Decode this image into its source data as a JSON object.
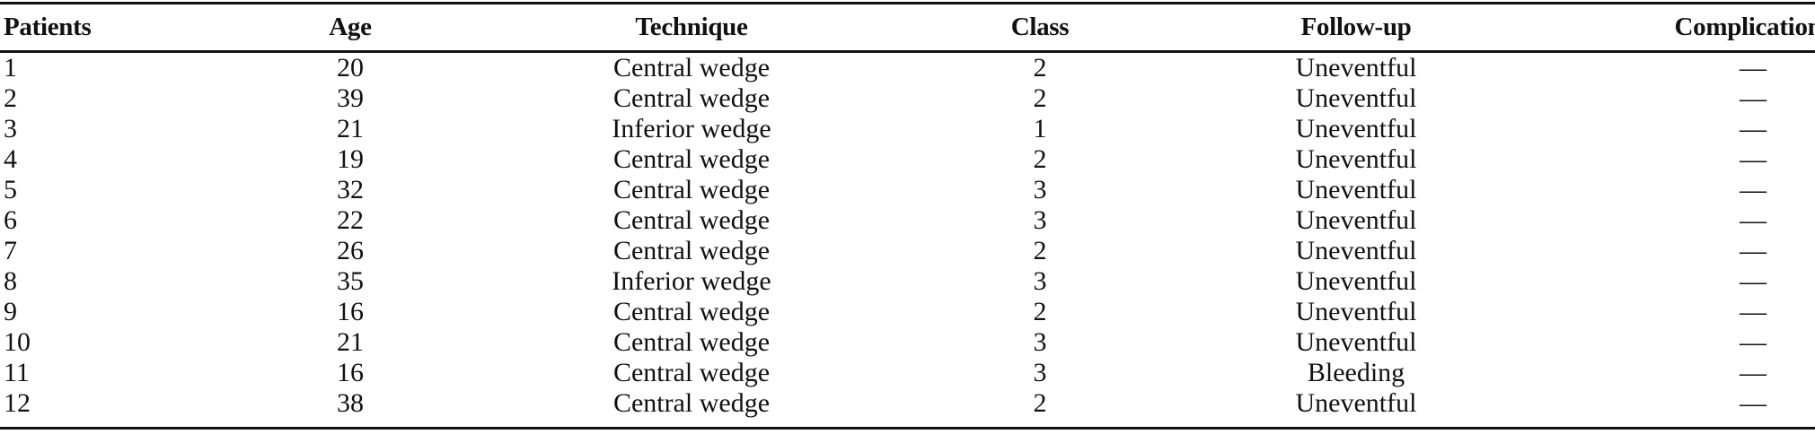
{
  "table": {
    "headers": [
      "Patients",
      "Age",
      "Technique",
      "Class",
      "Follow-up",
      "Complications"
    ],
    "rows": [
      [
        "1",
        "20",
        "Central wedge",
        "2",
        "Uneventful",
        "—"
      ],
      [
        "2",
        "39",
        "Central wedge",
        "2",
        "Uneventful",
        "—"
      ],
      [
        "3",
        "21",
        "Inferior wedge",
        "1",
        "Uneventful",
        "—"
      ],
      [
        "4",
        "19",
        "Central wedge",
        "2",
        "Uneventful",
        "—"
      ],
      [
        "5",
        "32",
        "Central wedge",
        "3",
        "Uneventful",
        "—"
      ],
      [
        "6",
        "22",
        "Central wedge",
        "3",
        "Uneventful",
        "—"
      ],
      [
        "7",
        "26",
        "Central wedge",
        "2",
        "Uneventful",
        "—"
      ],
      [
        "8",
        "35",
        "Inferior wedge",
        "3",
        "Uneventful",
        "—"
      ],
      [
        "9",
        "16",
        "Central wedge",
        "2",
        "Uneventful",
        "—"
      ],
      [
        "10",
        "21",
        "Central wedge",
        "3",
        "Uneventful",
        "—"
      ],
      [
        "11",
        "16",
        "Central wedge",
        "3",
        "Bleeding",
        "—"
      ],
      [
        "12",
        "38",
        "Central wedge",
        "2",
        "Uneventful",
        "—"
      ]
    ]
  }
}
